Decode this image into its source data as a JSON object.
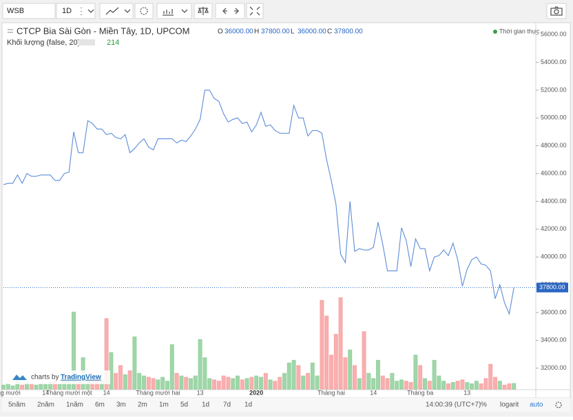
{
  "toolbar": {
    "symbol": "WSB",
    "interval": "1D"
  },
  "branding": {
    "prefix": "charts by",
    "name": "TradingView"
  },
  "bottom_bar": {
    "ranges": [
      "5năm",
      "2năm",
      "1năm",
      "6m",
      "3m",
      "2m",
      "1m",
      "5d",
      "1d",
      "7d",
      "1d"
    ],
    "time": "14:00:39 (UTC+7)",
    "percent": "%",
    "log": "logarit",
    "auto": "auto"
  },
  "chart_data": {
    "type": "line",
    "title": "CTCP Bia Sài Gòn - Miền Tây, 1D, UPCOM",
    "volume_label": "Khối lượng (false, 20)",
    "status": "Thời gian thực",
    "ohlc": [
      {
        "name": "O",
        "value": 36000,
        "label": "36000.00"
      },
      {
        "name": "H",
        "value": 37800,
        "label": "37800.00"
      },
      {
        "name": "L",
        "value": 36000,
        "label": "36000.00"
      },
      {
        "name": "C",
        "value": 37800,
        "label": "37800.00"
      }
    ],
    "categories": [
      "Tháng mười",
      null,
      null,
      null,
      null,
      null,
      null,
      null,
      null,
      "14",
      null,
      null,
      null,
      null,
      "Tháng mười một",
      null,
      null,
      null,
      null,
      null,
      null,
      null,
      "14",
      null,
      null,
      null,
      null,
      null,
      null,
      null,
      null,
      null,
      null,
      "Tháng mười hai",
      null,
      null,
      null,
      null,
      null,
      null,
      null,
      null,
      "13",
      null,
      null,
      null,
      null,
      null,
      null,
      null,
      null,
      null,
      null,
      null,
      "2020",
      null,
      null,
      null,
      null,
      null,
      null,
      null,
      null,
      null,
      null,
      null,
      null,
      null,
      null,
      null,
      "Tháng hai",
      null,
      null,
      null,
      null,
      null,
      null,
      null,
      null,
      "14",
      null,
      null,
      null,
      null,
      null,
      null,
      null,
      null,
      null,
      "Tháng ba",
      null,
      null,
      null,
      null,
      null,
      null,
      null,
      null,
      null,
      "13",
      null,
      null,
      null,
      null,
      null,
      null,
      null,
      null,
      null,
      null
    ],
    "series": [
      {
        "color": "#5b8cd6",
        "values": [
          45200,
          45300,
          45300,
          45900,
          45300,
          46000,
          45800,
          45800,
          45900,
          45900,
          45900,
          45500,
          45500,
          46000,
          46100,
          49000,
          47500,
          47500,
          49800,
          49600,
          49200,
          49200,
          48800,
          48900,
          48600,
          48500,
          48800,
          47500,
          47800,
          48200,
          48500,
          47900,
          47700,
          48500,
          48500,
          48500,
          48500,
          48200,
          48400,
          48300,
          48700,
          49200,
          49900,
          52000,
          52000,
          51400,
          51200,
          50300,
          49700,
          49900,
          50000,
          49600,
          49700,
          49000,
          49500,
          50400,
          49400,
          49500,
          49100,
          48900,
          48900,
          48900,
          50900,
          50000,
          50000,
          48700,
          49100,
          49100,
          48900,
          47000,
          45500,
          43800,
          40200,
          39600,
          44000,
          40400,
          40600,
          40500,
          40500,
          40700,
          42500,
          40900,
          39000,
          39000,
          39000,
          42100,
          41200,
          39300,
          41300,
          40600,
          40600,
          39000,
          40000,
          40100,
          40500,
          40100,
          41000,
          39800,
          37900,
          39100,
          39800,
          40000,
          39500,
          39400,
          39000,
          37000,
          38000,
          36700,
          35900,
          37800
        ]
      },
      {
        "type": "bar",
        "axis": "y2",
        "up_color": "#8fcf9a",
        "down_color": "#f7a1a1",
        "values": [
          150,
          200,
          120,
          300,
          150,
          250,
          200,
          150,
          180,
          200,
          250,
          300,
          200,
          400,
          350,
          2950,
          300,
          1200,
          450,
          400,
          500,
          350,
          2700,
          1400,
          600,
          900,
          550,
          700,
          2000,
          600,
          500,
          450,
          400,
          350,
          450,
          300,
          1700,
          600,
          500,
          450,
          400,
          500,
          1900,
          1200,
          400,
          350,
          300,
          500,
          450,
          400,
          500,
          350,
          400,
          450,
          500,
          450,
          600,
          350,
          300,
          450,
          600,
          1000,
          1100,
          900,
          500,
          600,
          1000,
          500,
          3400,
          2800,
          1300,
          2100,
          3500,
          1200,
          1500,
          900,
          400,
          2200,
          600,
          400,
          1100,
          500,
          400,
          600,
          300,
          350,
          300,
          250,
          1300,
          900,
          400,
          300,
          1100,
          500,
          300,
          200,
          250,
          300,
          350,
          250,
          200,
          300,
          200,
          400,
          950,
          450,
          300,
          150,
          200,
          214
        ]
      }
    ],
    "ylim": [
      30500,
      56750
    ],
    "yticks": [
      {
        "value": 32000,
        "label": "32000.00"
      },
      {
        "value": 34000,
        "label": "34000.00"
      },
      {
        "value": 36000,
        "label": "36000.00"
      },
      {
        "value": 38000,
        "label": "38000.00"
      },
      {
        "value": 40000,
        "label": "40000.00"
      },
      {
        "value": 42000,
        "label": "42000.00"
      },
      {
        "value": 44000,
        "label": "44000.00"
      },
      {
        "value": 46000,
        "label": "46000.00"
      },
      {
        "value": 48000,
        "label": "48000.00"
      },
      {
        "value": 50000,
        "label": "50000.00"
      },
      {
        "value": 52000,
        "label": "52000.00"
      },
      {
        "value": 54000,
        "label": "54000.00"
      },
      {
        "value": 56000,
        "label": "56000.00"
      }
    ],
    "y2lim": [
      0,
      14000
    ],
    "grid": false
  }
}
